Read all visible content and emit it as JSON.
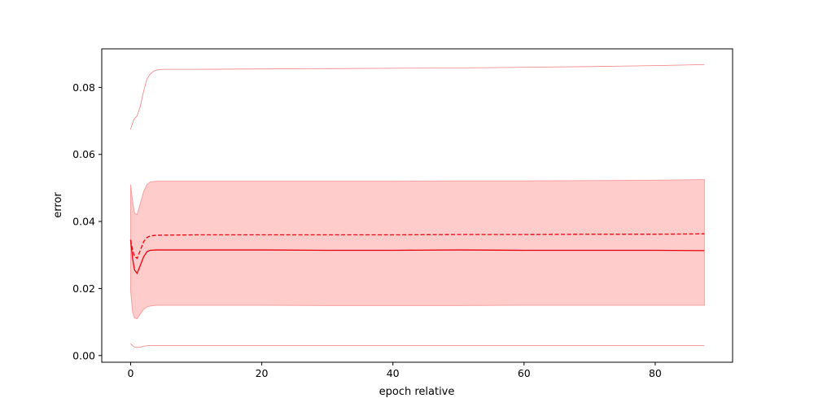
{
  "chart_data": {
    "type": "line",
    "title": "",
    "xlabel": "epoch relative",
    "ylabel": "error",
    "xlim": [
      -4.4,
      91.8
    ],
    "ylim": [
      -0.002,
      0.0915
    ],
    "x_ticks": [
      0,
      20,
      40,
      60,
      80
    ],
    "y_ticks": [
      0.0,
      0.02,
      0.04,
      0.06,
      0.08
    ],
    "y_tick_labels": [
      "0.00",
      "0.02",
      "0.04",
      "0.06",
      "0.08"
    ],
    "grid": false,
    "legend": "none",
    "colors": {
      "line": "#e8000b",
      "band_fill": "#ffcccc",
      "band_edge": "#f4a0a0",
      "outer": "#f08080"
    },
    "series": [
      {
        "style": "solid",
        "x": [
          0,
          0.3,
          0.6,
          1.0,
          1.5,
          2.0,
          2.5,
          3.0,
          4.0,
          10,
          20,
          30,
          40,
          50,
          60,
          70,
          80,
          87.5
        ],
        "y": [
          0.0345,
          0.029,
          0.0255,
          0.0245,
          0.027,
          0.0295,
          0.031,
          0.0314,
          0.0315,
          0.0315,
          0.0315,
          0.0314,
          0.0314,
          0.0315,
          0.0314,
          0.0314,
          0.0314,
          0.0313
        ]
      },
      {
        "style": "dashed",
        "x": [
          0,
          0.3,
          0.6,
          1.0,
          1.5,
          2.0,
          2.5,
          3.0,
          4.0,
          10,
          20,
          30,
          40,
          50,
          60,
          70,
          80,
          87.5
        ],
        "y": [
          0.0345,
          0.0315,
          0.0295,
          0.029,
          0.0315,
          0.034,
          0.0352,
          0.0357,
          0.0359,
          0.036,
          0.036,
          0.036,
          0.036,
          0.0361,
          0.0361,
          0.0362,
          0.0362,
          0.0363
        ]
      }
    ],
    "band": {
      "x": [
        0,
        0.3,
        0.6,
        1.0,
        1.5,
        2.0,
        2.5,
        3.0,
        4.0,
        10,
        20,
        30,
        40,
        50,
        60,
        70,
        80,
        87.5
      ],
      "upper": [
        0.051,
        0.046,
        0.0425,
        0.042,
        0.0455,
        0.049,
        0.051,
        0.0518,
        0.052,
        0.052,
        0.052,
        0.052,
        0.052,
        0.0521,
        0.0521,
        0.0522,
        0.0523,
        0.0525
      ],
      "lower": [
        0.0195,
        0.013,
        0.0112,
        0.011,
        0.0125,
        0.0138,
        0.0145,
        0.0148,
        0.015,
        0.015,
        0.015,
        0.0149,
        0.0149,
        0.0149,
        0.015,
        0.015,
        0.015,
        0.015
      ]
    },
    "outer_upper": {
      "x": [
        0,
        0.5,
        1.0,
        1.5,
        2.0,
        2.5,
        3.0,
        3.5,
        4.0,
        5.0,
        10,
        20,
        30,
        40,
        50,
        60,
        70,
        80,
        87.5
      ],
      "y": [
        0.0675,
        0.0705,
        0.0715,
        0.0745,
        0.079,
        0.0825,
        0.084,
        0.0848,
        0.0852,
        0.0854,
        0.0854,
        0.0855,
        0.0856,
        0.0857,
        0.0858,
        0.086,
        0.0862,
        0.0865,
        0.0868
      ]
    },
    "outer_lower": {
      "x": [
        0,
        0.5,
        1.0,
        1.5,
        2.0,
        3.0,
        5.0,
        10,
        20,
        40,
        60,
        80,
        87.5
      ],
      "y": [
        0.0035,
        0.0026,
        0.0024,
        0.0025,
        0.0028,
        0.003,
        0.003,
        0.003,
        0.003,
        0.003,
        0.003,
        0.003,
        0.003
      ]
    }
  }
}
